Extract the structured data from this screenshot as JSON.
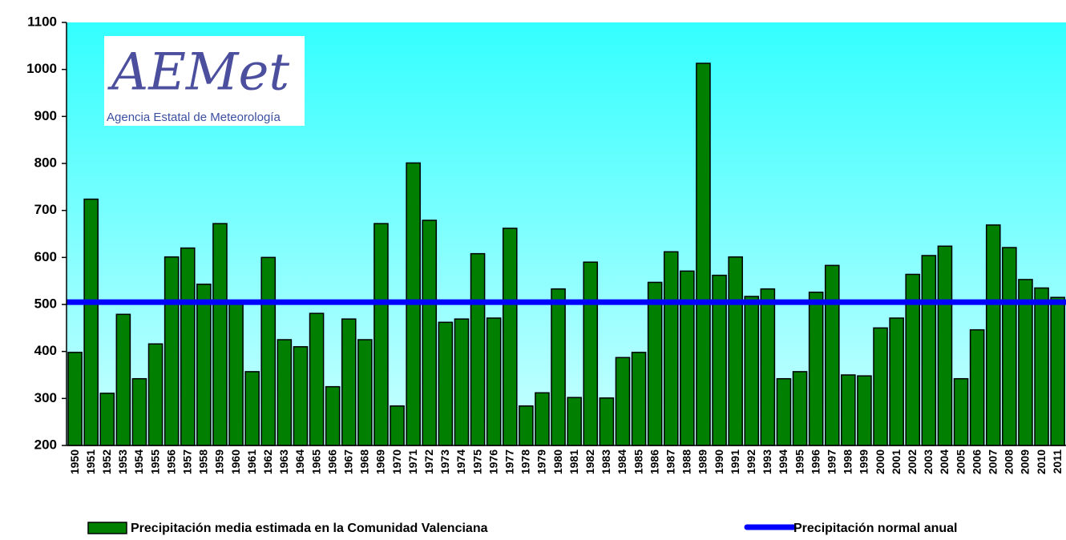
{
  "chart_data": {
    "type": "bar",
    "logo": {
      "text": "AEMet",
      "subtitle": "Agencia Estatal de Meteorología"
    },
    "categories": [
      "1950",
      "1951",
      "1952",
      "1953",
      "1954",
      "1955",
      "1956",
      "1957",
      "1958",
      "1959",
      "1960",
      "1961",
      "1962",
      "1963",
      "1964",
      "1965",
      "1966",
      "1967",
      "1968",
      "1969",
      "1970",
      "1971",
      "1972",
      "1973",
      "1974",
      "1975",
      "1976",
      "1977",
      "1978",
      "1979",
      "1980",
      "1981",
      "1982",
      "1983",
      "1984",
      "1985",
      "1986",
      "1987",
      "1988",
      "1989",
      "1990",
      "1991",
      "1992",
      "1993",
      "1994",
      "1995",
      "1996",
      "1997",
      "1998",
      "1999",
      "2000",
      "2001",
      "2002",
      "2003",
      "2004",
      "2005",
      "2006",
      "2007",
      "2008",
      "2009",
      "2010",
      "2011"
    ],
    "series": [
      {
        "name": "Precipitación media estimada en la Comunidad Valenciana",
        "color": "#007f00",
        "values": [
          398,
          724,
          311,
          479,
          342,
          416,
          601,
          620,
          543,
          672,
          505,
          357,
          600,
          425,
          410,
          481,
          325,
          469,
          425,
          672,
          284,
          801,
          679,
          462,
          469,
          608,
          471,
          662,
          284,
          312,
          533,
          302,
          590,
          301,
          387,
          398,
          547,
          612,
          571,
          1013,
          562,
          601,
          517,
          533,
          342,
          357,
          526,
          583,
          350,
          348,
          450,
          471,
          564,
          604,
          624,
          342,
          446,
          669,
          621,
          553,
          535,
          515
        ]
      },
      {
        "name": "Precipitación normal anual",
        "color": "#0000ff",
        "type": "line",
        "value": 505
      }
    ],
    "ylim": [
      200,
      1100
    ],
    "yticks": [
      200,
      300,
      400,
      500,
      600,
      700,
      800,
      900,
      1000,
      1100
    ],
    "grid": false
  }
}
